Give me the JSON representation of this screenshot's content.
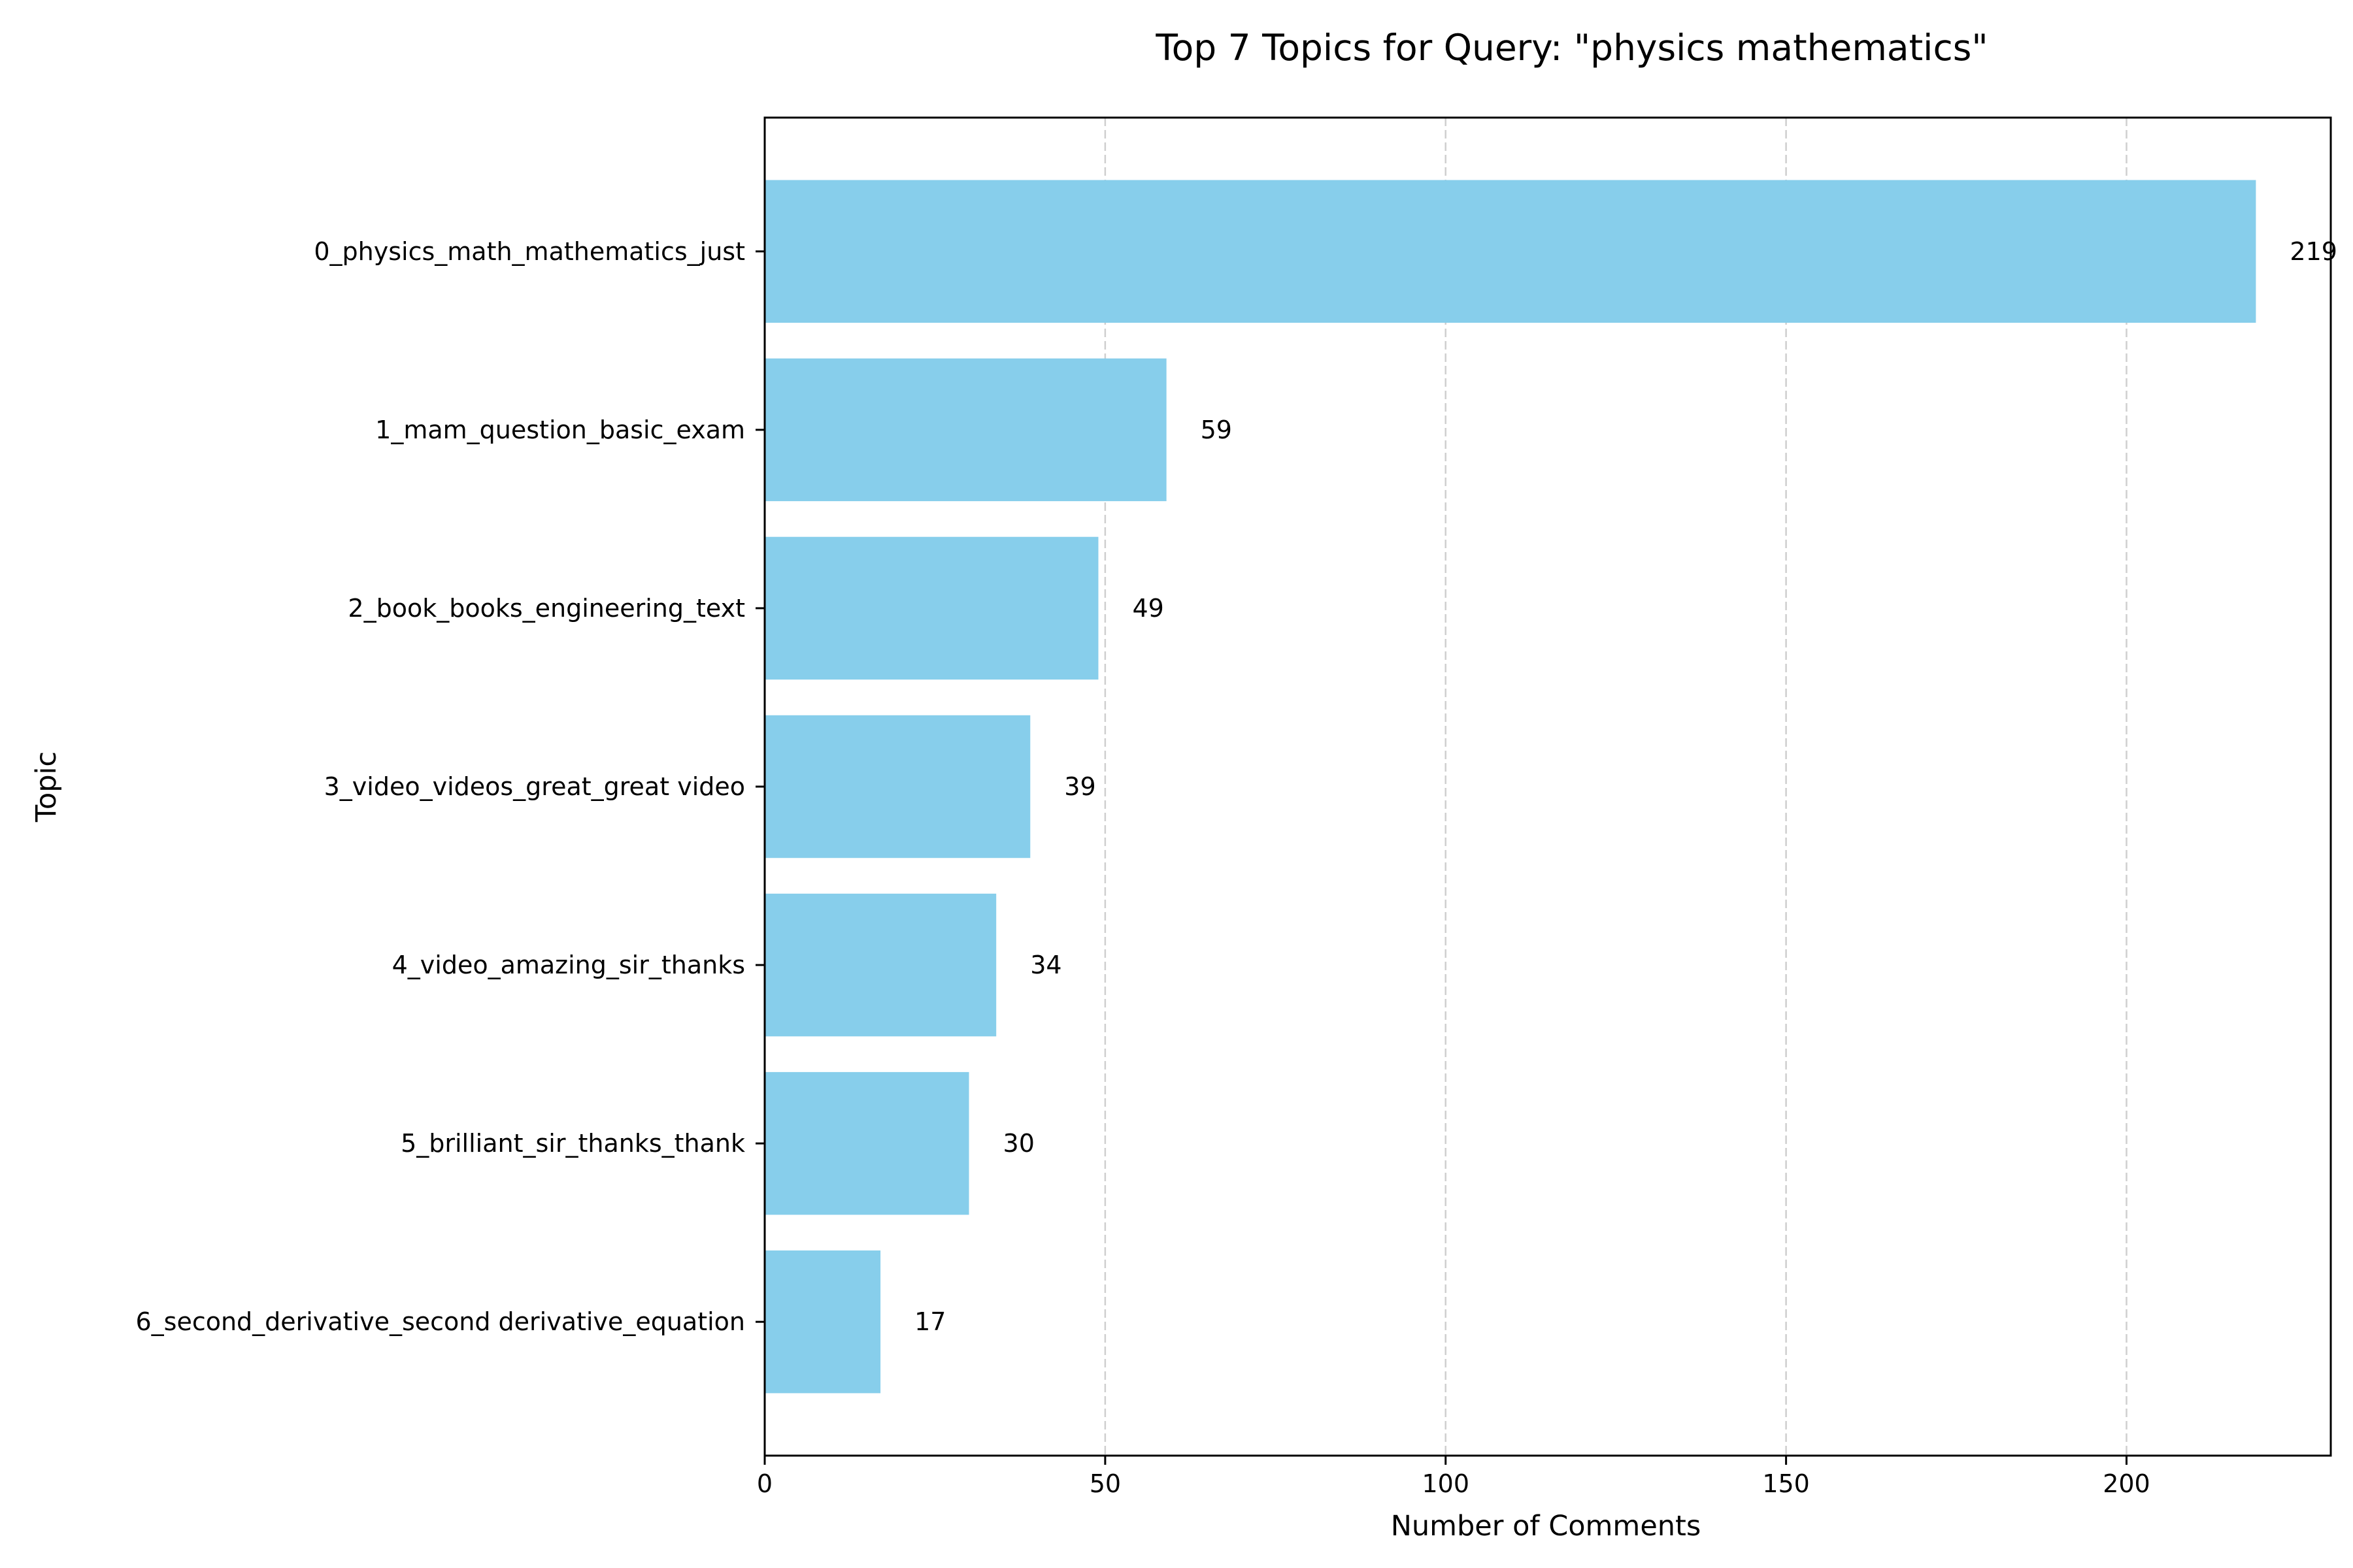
{
  "chart_data": {
    "type": "bar",
    "orientation": "horizontal",
    "title": "Top 7 Topics for Query: \"physics mathematics\"",
    "xlabel": "Number of Comments",
    "ylabel": "Topic",
    "xlim": [
      0,
      230
    ],
    "xticks": [
      0,
      50,
      100,
      150,
      200
    ],
    "grid": "x-dashed",
    "bar_color": "#87ceeb",
    "categories": [
      "0_physics_math_mathematics_just",
      "1_mam_question_basic_exam",
      "2_book_books_engineering_text",
      "3_video_videos_great_great video",
      "4_video_amazing_sir_thanks",
      "5_brilliant_sir_thanks_thank",
      "6_second_derivative_second derivative_equation"
    ],
    "values": [
      219,
      59,
      49,
      39,
      34,
      30,
      17
    ]
  }
}
